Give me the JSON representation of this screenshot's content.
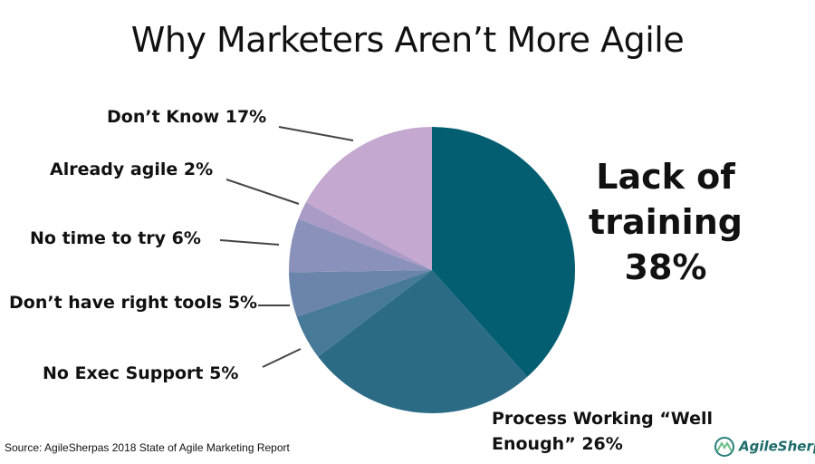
{
  "chart_data": {
    "type": "pie",
    "title": "Why Marketers Aren’t More Agile",
    "slices": [
      {
        "label": "Lack of training",
        "value": 38,
        "color": "#025e70"
      },
      {
        "label": "Process Working “Well Enough”",
        "value": 26,
        "color": "#2c6b86"
      },
      {
        "label": "No Exec Support",
        "value": 5,
        "color": "#477a98"
      },
      {
        "label": "Don’t have right tools",
        "value": 5,
        "color": "#6a84ac"
      },
      {
        "label": "No time to try",
        "value": 6,
        "color": "#8a92bc"
      },
      {
        "label": "Already agile",
        "value": 2,
        "color": "#a99ac6"
      },
      {
        "label": "Don’t Know",
        "value": 17,
        "color": "#c4a8d0"
      }
    ],
    "labels_text": {
      "training_1": "Lack of",
      "training_2": "training",
      "training_3": "38%",
      "process_1": "Process Working “Well",
      "process_2": "Enough” 26%",
      "exec": "No Exec Support 5%",
      "tools": "Don’t have right tools 5%",
      "time": "No time to try 6%",
      "agile": "Already agile 2%",
      "dontknow": "Don’t Know 17%"
    }
  },
  "source": "Source: AgileSherpas 2018 State of Agile Marketing Report",
  "logo": "AgileSherpas"
}
